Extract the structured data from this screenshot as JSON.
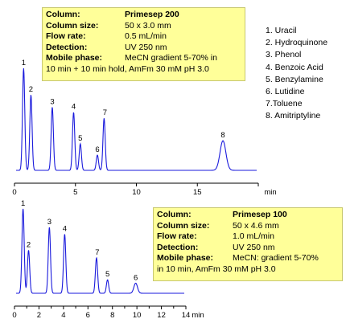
{
  "chart_data": [
    {
      "type": "line",
      "title": "",
      "xlabel": "min",
      "ylabel": "",
      "xlim": [
        0,
        20
      ],
      "x_ticks": [
        0,
        5,
        10,
        15,
        20
      ],
      "tick_labels": [
        "0",
        "5",
        "10",
        "15"
      ],
      "peaks": [
        {
          "label": "1",
          "rt": 0.75,
          "height": 1.0
        },
        {
          "label": "2",
          "rt": 1.35,
          "height": 0.74
        },
        {
          "label": "3",
          "rt": 3.1,
          "height": 0.62
        },
        {
          "label": "4",
          "rt": 4.85,
          "height": 0.57
        },
        {
          "label": "5",
          "rt": 5.4,
          "height": 0.26
        },
        {
          "label": "6",
          "rt": 6.8,
          "height": 0.15
        },
        {
          "label": "7",
          "rt": 7.35,
          "height": 0.51
        },
        {
          "label": "8",
          "rt": 17.1,
          "height": 0.29
        }
      ],
      "conditions": {
        "column_label": "Column:",
        "column": "Primesep 200",
        "size_label": "Column size:",
        "size": "50 x  3.0 mm",
        "flow_label": "Flow rate:",
        "flow": "0.5 mL/min",
        "detection_label": "Detection:",
        "detection": "UV 250 nm",
        "mobile_label": "Mobile phase:",
        "mobile_1": "MeCN gradient 5-70% in",
        "mobile_2": "10 min + 10 min hold,  AmFm 30 mM pH 3.0"
      }
    },
    {
      "type": "line",
      "title": "",
      "xlabel": "min",
      "ylabel": "",
      "xlim": [
        0,
        14
      ],
      "x_ticks": [
        0,
        1,
        2,
        3,
        4,
        5,
        6,
        7,
        8,
        9,
        10,
        11,
        12,
        13,
        14
      ],
      "tick_labels": [
        "0",
        "2",
        "4",
        "6",
        "8",
        "10",
        "12",
        "14"
      ],
      "peaks": [
        {
          "label": "1",
          "rt": 0.7,
          "height": 1.0
        },
        {
          "label": "2",
          "rt": 1.15,
          "height": 0.51
        },
        {
          "label": "3",
          "rt": 2.85,
          "height": 0.78
        },
        {
          "label": "4",
          "rt": 4.1,
          "height": 0.7
        },
        {
          "label": "5",
          "rt": 7.6,
          "height": 0.16
        },
        {
          "label": "6",
          "rt": 9.9,
          "height": 0.12
        },
        {
          "label": "7",
          "rt": 6.7,
          "height": 0.42
        }
      ],
      "conditions": {
        "column_label": "Column:",
        "column": "Primesep 100",
        "size_label": "Column size:",
        "size": "50 x  4.6 mm",
        "flow_label": "Flow rate:",
        "flow": "1.0 mL/min",
        "detection_label": "Detection:",
        "detection": "UV 250 nm",
        "mobile_label": "Mobile phase:",
        "mobile_1": "MeCN: gradient 5-70%",
        "mobile_2": "in 10 min,  AmFm 30 mM pH 3.0"
      }
    }
  ],
  "legend": [
    "1. Uracil",
    "2. Hydroquinone",
    "3. Phenol",
    "4. Benzoic Acid",
    "5. Benzylamine",
    "6. Lutidine",
    "7.Toluene",
    "8. Amitriptyline"
  ],
  "colors": {
    "trace": "#1a1adc",
    "box": "#ffff99"
  }
}
